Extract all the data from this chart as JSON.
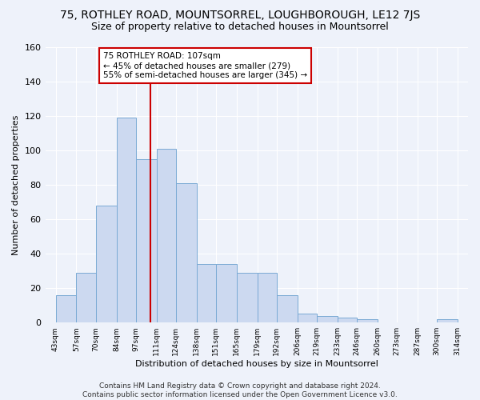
{
  "title": "75, ROTHLEY ROAD, MOUNTSORREL, LOUGHBOROUGH, LE12 7JS",
  "subtitle": "Size of property relative to detached houses in Mountsorrel",
  "xlabel": "Distribution of detached houses by size in Mountsorrel",
  "ylabel": "Number of detached properties",
  "bar_color": "#ccd9f0",
  "bar_edgecolor": "#7aaad4",
  "bins": [
    43,
    57,
    70,
    84,
    97,
    111,
    124,
    138,
    151,
    165,
    179,
    192,
    206,
    219,
    233,
    246,
    260,
    273,
    287,
    300,
    314
  ],
  "counts": [
    16,
    29,
    68,
    119,
    95,
    101,
    81,
    34,
    34,
    29,
    29,
    16,
    5,
    4,
    3,
    2,
    0,
    0,
    0,
    2
  ],
  "vline_x": 107,
  "vline_color": "#cc0000",
  "annotation_text": "75 ROTHLEY ROAD: 107sqm\n← 45% of detached houses are smaller (279)\n55% of semi-detached houses are larger (345) →",
  "annotation_box_edgecolor": "#cc0000",
  "annotation_box_facecolor": "#ffffff",
  "ylim": [
    0,
    160
  ],
  "yticks": [
    0,
    20,
    40,
    60,
    80,
    100,
    120,
    140,
    160
  ],
  "tick_labels": [
    "43sqm",
    "57sqm",
    "70sqm",
    "84sqm",
    "97sqm",
    "111sqm",
    "124sqm",
    "138sqm",
    "151sqm",
    "165sqm",
    "179sqm",
    "192sqm",
    "206sqm",
    "219sqm",
    "233sqm",
    "246sqm",
    "260sqm",
    "273sqm",
    "287sqm",
    "300sqm",
    "314sqm"
  ],
  "footer": "Contains HM Land Registry data © Crown copyright and database right 2024.\nContains public sector information licensed under the Open Government Licence v3.0.",
  "bg_color": "#eef2fa",
  "grid_color": "#ffffff",
  "title_fontsize": 10,
  "subtitle_fontsize": 9,
  "footer_fontsize": 6.5
}
